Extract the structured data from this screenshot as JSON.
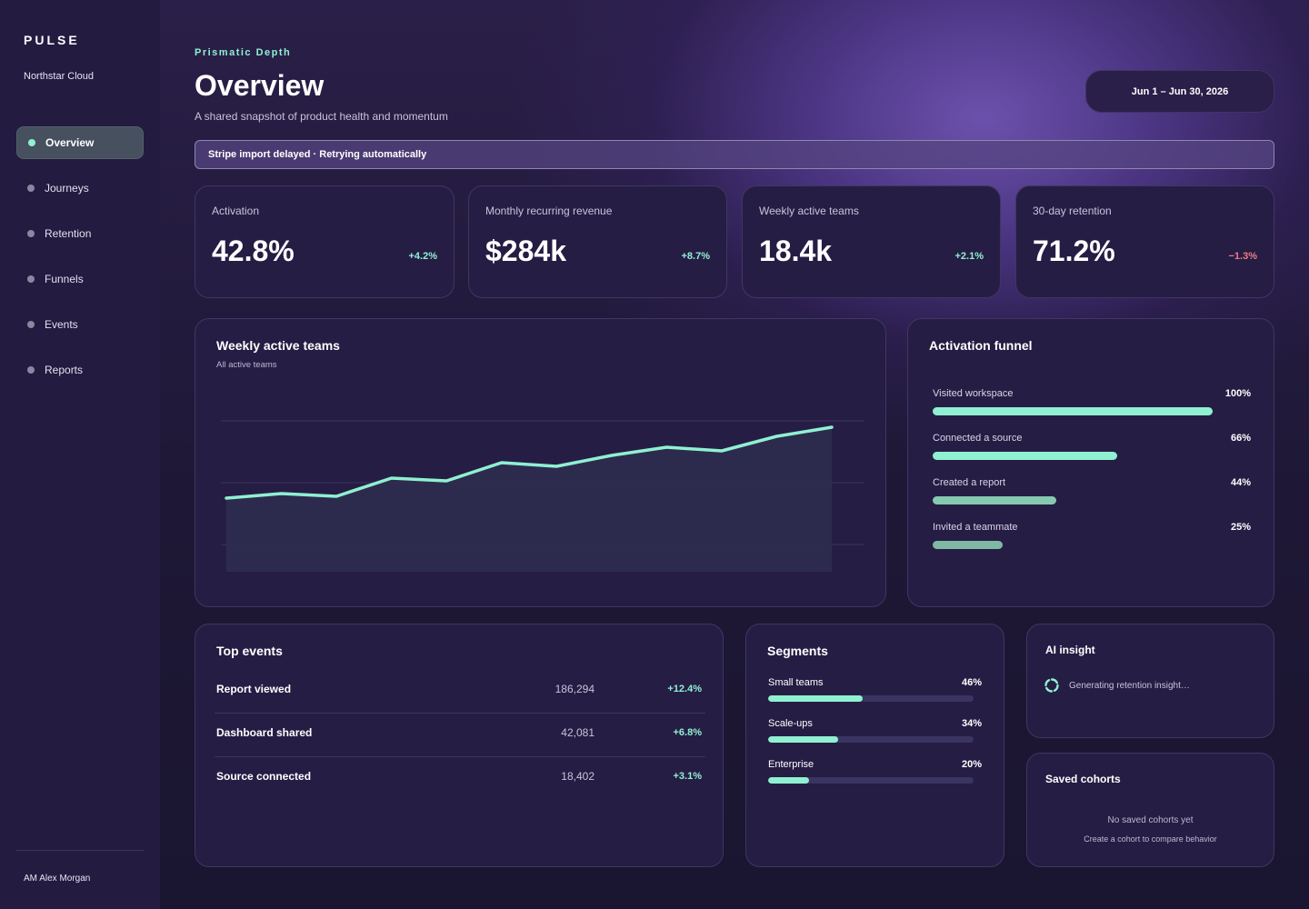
{
  "sidebar": {
    "brand": "PULSE",
    "org": "Northstar Cloud",
    "items": [
      {
        "label": "Overview",
        "active": true
      },
      {
        "label": "Journeys",
        "active": false
      },
      {
        "label": "Retention",
        "active": false
      },
      {
        "label": "Funnels",
        "active": false
      },
      {
        "label": "Events",
        "active": false
      },
      {
        "label": "Reports",
        "active": false
      }
    ],
    "user": "AM Alex Morgan"
  },
  "header": {
    "eyebrow": "Prismatic Depth",
    "title": "Overview",
    "subtitle": "A shared snapshot of product health and momentum",
    "date_range": "Jun 1 – Jun 30, 2026"
  },
  "banner": {
    "text": "Stripe import delayed · Retrying automatically"
  },
  "kpis": [
    {
      "label": "Activation",
      "value": "42.8%",
      "delta": "+4.2%",
      "trend": "up"
    },
    {
      "label": "Monthly recurring revenue",
      "value": "$284k",
      "delta": "+8.7%",
      "trend": "up"
    },
    {
      "label": "Weekly active teams",
      "value": "18.4k",
      "delta": "+2.1%",
      "trend": "up"
    },
    {
      "label": "30-day retention",
      "value": "71.2%",
      "delta": "−1.3%",
      "trend": "down"
    }
  ],
  "weekly_chart": {
    "title": "Weekly active teams",
    "subtitle": "All active teams"
  },
  "chart_data": {
    "type": "area",
    "title": "Weekly active teams",
    "subtitle": "All active teams",
    "x": [
      1,
      2,
      3,
      4,
      5,
      6,
      7,
      8,
      9,
      10,
      11,
      12
    ],
    "series": [
      {
        "values": [
          12.1,
          12.6,
          12.3,
          14.3,
          14.0,
          16.0,
          15.6,
          16.8,
          17.7,
          17.3,
          18.9,
          19.9
        ]
      }
    ],
    "ylim": [
      4,
      24
    ],
    "grid": true,
    "xlabel": "",
    "ylabel": "",
    "colors": {
      "line": "#8ff0d2",
      "area": "#2d2c4e",
      "grid": "#3a3560"
    }
  },
  "funnel": {
    "title": "Activation funnel",
    "steps": [
      {
        "label": "Visited workspace",
        "pct": "100%",
        "value": 1.0,
        "color": "#8ff0d2"
      },
      {
        "label": "Connected a source",
        "pct": "66%",
        "value": 0.66,
        "color": "#8ff0d2"
      },
      {
        "label": "Created a report",
        "pct": "44%",
        "value": 0.44,
        "color": "#85c9b0"
      },
      {
        "label": "Invited a teammate",
        "pct": "25%",
        "value": 0.25,
        "color": "#80b9a3"
      }
    ]
  },
  "top_events": {
    "title": "Top events",
    "rows": [
      {
        "name": "Report viewed",
        "count": "186,294",
        "delta": "+12.4%"
      },
      {
        "name": "Dashboard shared",
        "count": "42,081",
        "delta": "+6.8%"
      },
      {
        "name": "Source connected",
        "count": "18,402",
        "delta": "+3.1%"
      }
    ]
  },
  "segments": {
    "title": "Segments",
    "items": [
      {
        "label": "Small teams",
        "pct": "46%",
        "value": 0.46
      },
      {
        "label": "Scale-ups",
        "pct": "34%",
        "value": 0.34
      },
      {
        "label": "Enterprise",
        "pct": "20%",
        "value": 0.2
      }
    ]
  },
  "ai_insight": {
    "title": "AI insight",
    "status": "Generating retention insight…",
    "icon": "spinner-icon"
  },
  "saved_cohorts": {
    "title": "Saved cohorts",
    "empty_title": "No saved cohorts yet",
    "empty_hint": "Create a cohort to compare behavior"
  }
}
